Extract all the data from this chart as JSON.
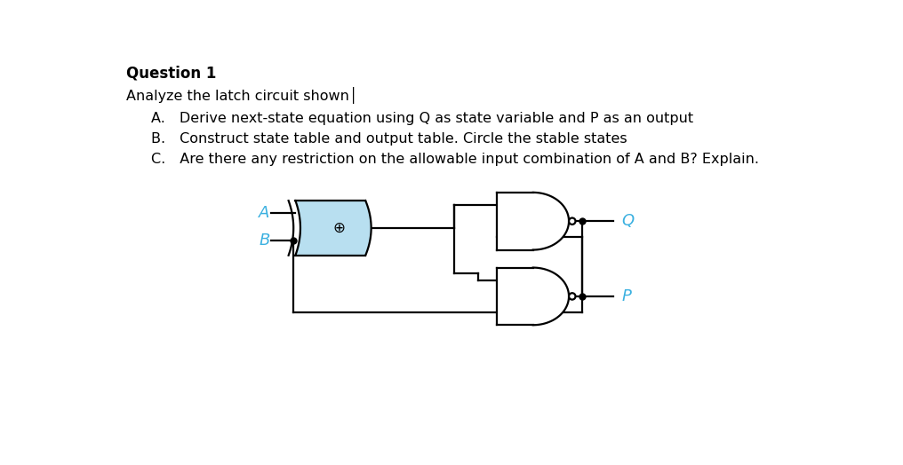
{
  "title": "Question 1",
  "line1": "Analyze the latch circuit shown│",
  "item_a": "A. Derive next-state equation using Q as state variable and P as an output",
  "item_b": "B. Construct state table and output table. Circle the stable states",
  "item_c": "C. Are there any restriction on the allowable input combination of A and B? Explain.",
  "label_A": "A",
  "label_B": "B",
  "label_Q": "Q",
  "label_P": "P",
  "bg_color": "#ffffff",
  "text_color": "#000000",
  "cyan_color": "#3ab0e0",
  "gate_fill": "#b8dff0",
  "lw": 1.6
}
